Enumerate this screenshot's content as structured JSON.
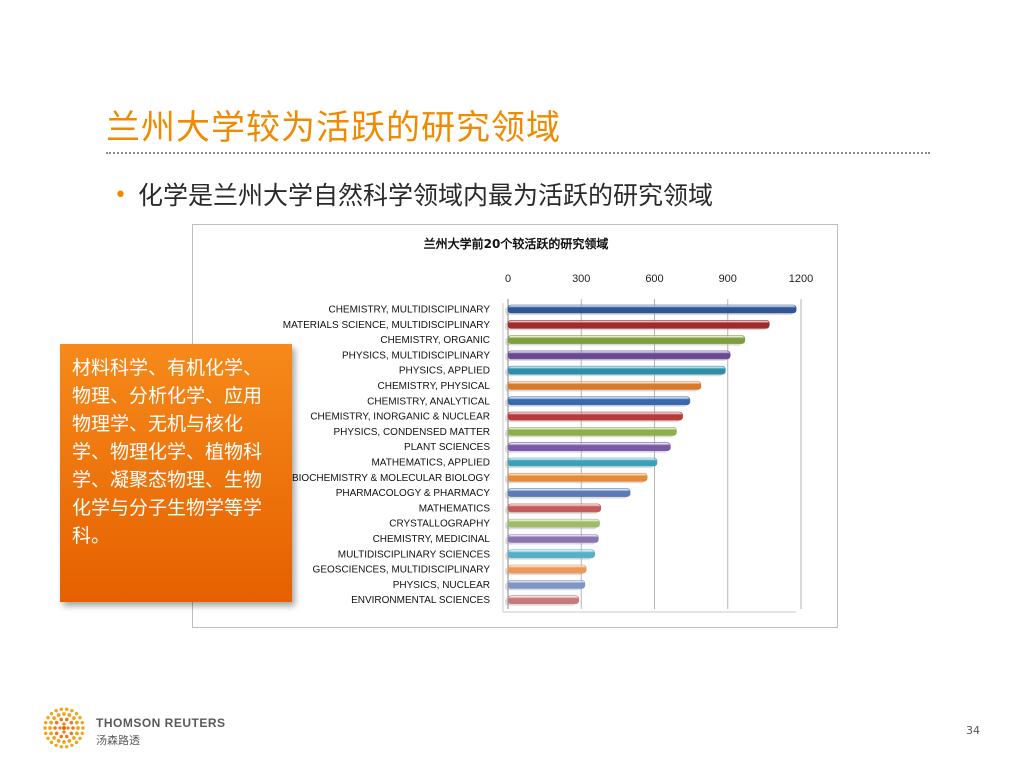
{
  "slide": {
    "title": "兰州大学较为活跃的研究领域",
    "bullet_marker": "•",
    "bullet_text": "化学是兰州大学自然科学领域内最为活跃的研究领域",
    "callout_text": "材料科学、有机化学、物理、分析化学、应用物理学、无机与核化学、物理化学、植物科学、凝聚态物理、生物化学与分子生物学等学科。",
    "footer": {
      "brand": "THOMSON REUTERS",
      "brand_cn": "汤森路透",
      "logo_icon": "thomson-reuters-dot-logo-icon",
      "page_number": "34"
    },
    "colors": {
      "title": "#f08a00",
      "callout": "#f07514"
    }
  },
  "chart_data": {
    "type": "bar",
    "orientation": "horizontal",
    "title": "兰州大学前20个较活跃的研究领域",
    "xlim": [
      0,
      1200
    ],
    "x_ticks": [
      "0",
      "300",
      "600",
      "900",
      "1200"
    ],
    "x_tick_values": [
      0,
      300,
      600,
      900,
      1200
    ],
    "x_axis_position": "top",
    "grid": true,
    "legend": "none",
    "categories": [
      "CHEMISTRY, MULTIDISCIPLINARY",
      "MATERIALS SCIENCE, MULTIDISCIPLINARY",
      "CHEMISTRY, ORGANIC",
      "PHYSICS, MULTIDISCIPLINARY",
      "PHYSICS, APPLIED",
      "CHEMISTRY, PHYSICAL",
      "CHEMISTRY, ANALYTICAL",
      "CHEMISTRY, INORGANIC & NUCLEAR",
      "PHYSICS, CONDENSED MATTER",
      "PLANT SCIENCES",
      "MATHEMATICS, APPLIED",
      "BIOCHEMISTRY & MOLECULAR BIOLOGY",
      "PHARMACOLOGY & PHARMACY",
      "MATHEMATICS",
      "CRYSTALLOGRAPHY",
      "CHEMISTRY, MEDICINAL",
      "MULTIDISCIPLINARY SCIENCES",
      "GEOSCIENCES, MULTIDISCIPLINARY",
      "PHYSICS, NUCLEAR",
      "ENVIRONMENTAL SCIENCES"
    ],
    "values": [
      1180,
      1070,
      970,
      910,
      890,
      790,
      745,
      715,
      690,
      665,
      610,
      570,
      500,
      380,
      375,
      370,
      355,
      320,
      315,
      290
    ],
    "bar_colors": [
      "#2e5597",
      "#a32a2a",
      "#7da03a",
      "#6a4a93",
      "#2f8ea8",
      "#d9792a",
      "#3a68ad",
      "#b83a3a",
      "#8db04a",
      "#7a5aa8",
      "#3aa0bc",
      "#e8893a",
      "#5a7ab8",
      "#c45a5a",
      "#9cbc6a",
      "#8c74b0",
      "#56aec8",
      "#eb9858",
      "#7e96c4",
      "#c87a7a"
    ]
  }
}
